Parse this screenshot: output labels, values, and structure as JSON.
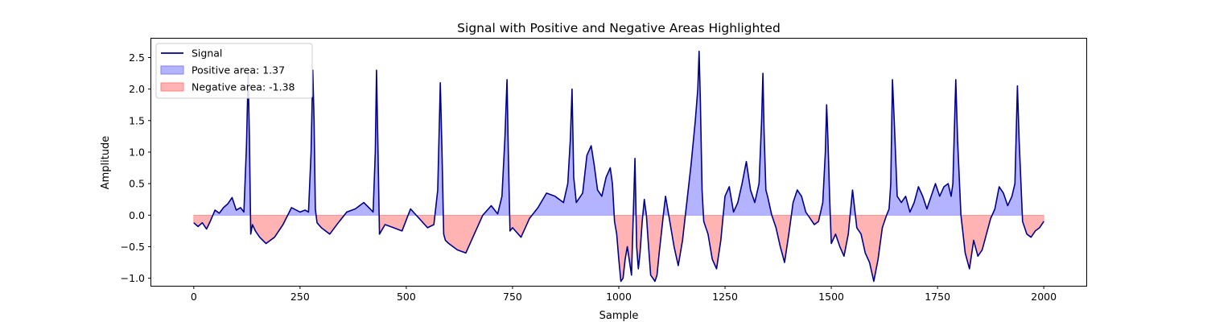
{
  "chart_data": {
    "type": "area",
    "title": "Signal with Positive and Negative Areas Highlighted",
    "xlabel": "Sample",
    "ylabel": "Amplitude",
    "xlim": [
      -100,
      2100
    ],
    "ylim": [
      -1.12,
      2.8
    ],
    "xticks": [
      0,
      250,
      500,
      750,
      1000,
      1250,
      1500,
      1750,
      2000
    ],
    "yticks": [
      -1.0,
      -0.5,
      0.0,
      0.5,
      1.0,
      1.5,
      2.0,
      2.5
    ],
    "ytick_labels": [
      "−1.0",
      "−0.5",
      "0.0",
      "0.5",
      "1.0",
      "1.5",
      "2.0",
      "2.5"
    ],
    "legend_position": "top-left",
    "grid": false,
    "colors": {
      "signal": "#00008b",
      "positive_fill": "#8080ff",
      "negative_fill": "#ff8080"
    },
    "series": [
      {
        "name": "Signal",
        "kind": "line"
      },
      {
        "name": "Positive area: 1.37",
        "kind": "fill-positive"
      },
      {
        "name": "Negative area: -1.38",
        "kind": "fill-negative"
      }
    ],
    "x": [
      0,
      10,
      20,
      30,
      40,
      50,
      60,
      70,
      80,
      90,
      100,
      110,
      118,
      124,
      128,
      131,
      134,
      138,
      145,
      155,
      170,
      190,
      210,
      230,
      250,
      262,
      270,
      276,
      280,
      283,
      286,
      290,
      300,
      320,
      340,
      360,
      380,
      400,
      415,
      422,
      427,
      430,
      433,
      437,
      450,
      470,
      490,
      510,
      530,
      550,
      565,
      574,
      580,
      584,
      588,
      592,
      600,
      620,
      640,
      660,
      680,
      700,
      715,
      725,
      732,
      737,
      740,
      744,
      750,
      770,
      790,
      810,
      830,
      850,
      870,
      880,
      886,
      890,
      894,
      900,
      915,
      925,
      935,
      942,
      950,
      960,
      970,
      980,
      985,
      990,
      995,
      1000,
      1005,
      1010,
      1015,
      1020,
      1030,
      1038,
      1042,
      1046,
      1050,
      1055,
      1060,
      1065,
      1070,
      1075,
      1080,
      1085,
      1090,
      1095,
      1100,
      1105,
      1110,
      1120,
      1130,
      1140,
      1150,
      1160,
      1170,
      1180,
      1186,
      1189,
      1192,
      1196,
      1200,
      1210,
      1220,
      1230,
      1240,
      1250,
      1260,
      1270,
      1280,
      1290,
      1300,
      1310,
      1320,
      1330,
      1336,
      1339,
      1342,
      1346,
      1350,
      1360,
      1370,
      1380,
      1390,
      1400,
      1410,
      1420,
      1430,
      1440,
      1450,
      1460,
      1470,
      1480,
      1486,
      1489,
      1492,
      1496,
      1500,
      1510,
      1520,
      1530,
      1540,
      1550,
      1560,
      1570,
      1580,
      1590,
      1600,
      1610,
      1620,
      1630,
      1636,
      1640,
      1644,
      1648,
      1655,
      1665,
      1675,
      1685,
      1695,
      1705,
      1715,
      1725,
      1735,
      1745,
      1755,
      1765,
      1775,
      1782,
      1786,
      1789,
      1793,
      1797,
      1805,
      1815,
      1825,
      1835,
      1845,
      1855,
      1865,
      1875,
      1885,
      1895,
      1905,
      1915,
      1925,
      1932,
      1935,
      1938,
      1942,
      1950,
      1960,
      1970,
      1980,
      1990,
      2000
    ],
    "y": [
      -0.12,
      -0.18,
      -0.12,
      -0.22,
      -0.08,
      0.08,
      0.03,
      0.12,
      0.18,
      0.28,
      0.08,
      0.12,
      0.05,
      1.1,
      2.25,
      1.2,
      -0.3,
      -0.15,
      -0.25,
      -0.35,
      -0.45,
      -0.35,
      -0.15,
      0.12,
      0.05,
      0.08,
      0.05,
      1.0,
      2.3,
      1.5,
      0.1,
      -0.12,
      -0.2,
      -0.3,
      -0.12,
      0.05,
      0.1,
      0.2,
      0.1,
      0.05,
      1.0,
      2.3,
      1.2,
      -0.3,
      -0.15,
      -0.2,
      -0.25,
      0.1,
      -0.05,
      -0.2,
      -0.15,
      0.4,
      2.1,
      1.0,
      -0.3,
      -0.4,
      -0.45,
      -0.55,
      -0.6,
      -0.3,
      0.0,
      0.15,
      0.02,
      0.3,
      1.2,
      2.15,
      1.0,
      -0.25,
      -0.2,
      -0.35,
      -0.05,
      0.12,
      0.35,
      0.3,
      0.2,
      0.5,
      1.2,
      2.0,
      0.6,
      0.2,
      0.35,
      0.95,
      1.1,
      0.8,
      0.4,
      0.3,
      0.6,
      0.75,
      0.5,
      -0.1,
      -0.3,
      -0.7,
      -1.05,
      -1.0,
      -0.7,
      -0.5,
      -0.95,
      0.9,
      -0.5,
      -0.85,
      -0.6,
      -0.1,
      0.25,
      0.0,
      -0.5,
      -0.95,
      -1.0,
      -1.05,
      -0.95,
      -0.6,
      -0.3,
      0.02,
      0.3,
      -0.1,
      -0.5,
      -0.8,
      -0.4,
      0.2,
      0.8,
      1.5,
      2.0,
      2.6,
      1.8,
      0.4,
      -0.1,
      -0.3,
      -0.7,
      -0.85,
      -0.4,
      0.3,
      0.45,
      0.05,
      0.2,
      0.5,
      0.85,
      0.4,
      0.2,
      0.5,
      1.5,
      2.25,
      1.3,
      0.4,
      0.3,
      0.0,
      -0.2,
      -0.5,
      -0.75,
      -0.3,
      0.2,
      0.4,
      0.3,
      0.05,
      -0.05,
      -0.15,
      -0.1,
      0.2,
      1.0,
      1.75,
      1.2,
      0.3,
      -0.45,
      -0.3,
      -0.5,
      -0.65,
      -0.3,
      0.4,
      -0.2,
      -0.3,
      -0.6,
      -0.75,
      -1.05,
      -0.7,
      -0.2,
      0.0,
      0.1,
      0.5,
      2.15,
      1.5,
      0.3,
      0.2,
      0.3,
      0.05,
      0.2,
      0.45,
      0.3,
      0.1,
      0.3,
      0.5,
      0.3,
      0.45,
      0.5,
      0.3,
      0.5,
      1.2,
      2.15,
      1.2,
      0.0,
      -0.6,
      -0.85,
      -0.4,
      -0.65,
      -0.55,
      -0.3,
      -0.05,
      0.1,
      0.45,
      0.35,
      0.15,
      0.3,
      0.5,
      1.3,
      2.05,
      1.2,
      -0.1,
      -0.3,
      -0.35,
      -0.25,
      -0.2,
      -0.1
    ]
  }
}
